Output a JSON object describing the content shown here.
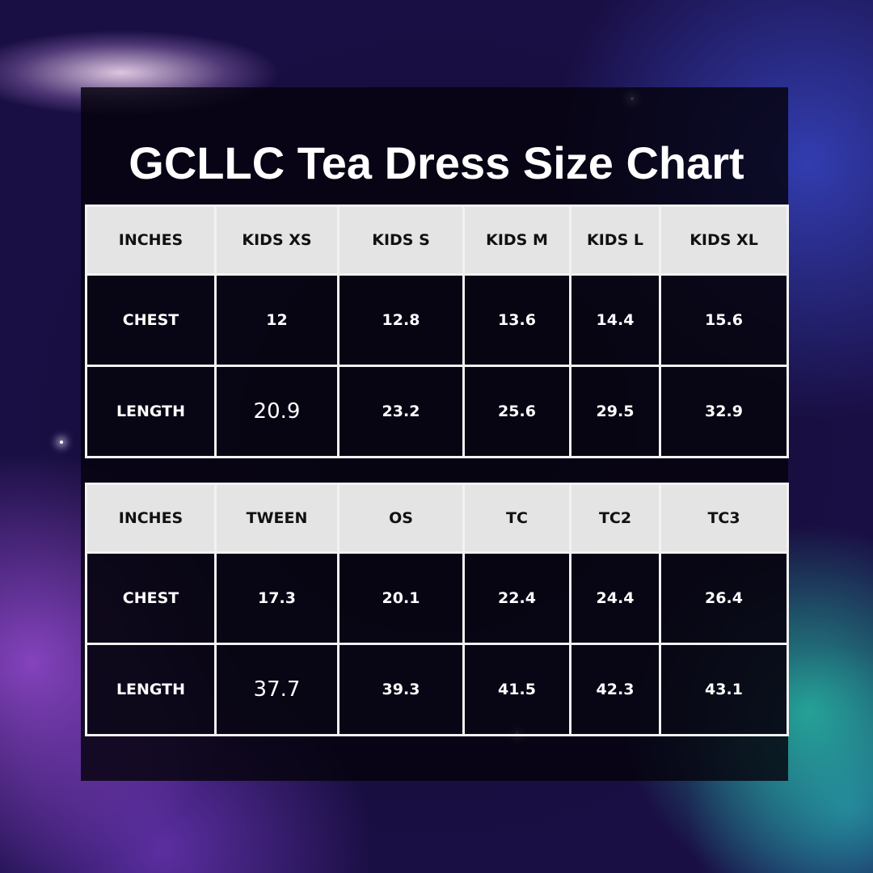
{
  "title": "GCLLC Tea Dress Size Chart",
  "tables": [
    {
      "headers": [
        "Inches",
        "Kids XS",
        "Kids S",
        "Kids M",
        "Kids L",
        "Kids XL"
      ],
      "rows": [
        {
          "label": "Chest",
          "values": [
            "12",
            "12.8",
            "13.6",
            "14.4",
            "15.6"
          ]
        },
        {
          "label": "Length",
          "values": [
            "20.9",
            "23.2",
            "25.6",
            "29.5",
            "32.9"
          ]
        }
      ]
    },
    {
      "headers": [
        "Inches",
        "Tween",
        "OS",
        "TC",
        "TC2",
        "TC3"
      ],
      "rows": [
        {
          "label": "Chest",
          "values": [
            "17.3",
            "20.1",
            "22.4",
            "24.4",
            "26.4"
          ]
        },
        {
          "label": "Length",
          "values": [
            "37.7",
            "39.3",
            "41.5",
            "42.3",
            "43.1"
          ]
        }
      ]
    }
  ]
}
